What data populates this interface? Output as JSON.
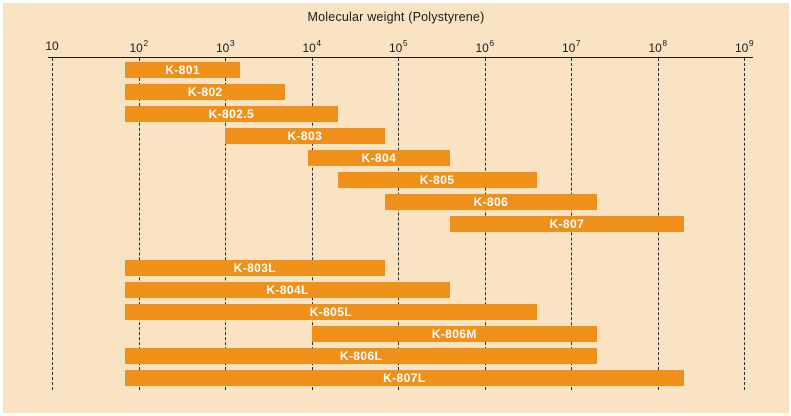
{
  "colors": {
    "panel_background": "#fae3c3",
    "bar": "#ef901b",
    "bar_label": "#ffffff",
    "axis": "#1a1a1a"
  },
  "chart_data": {
    "type": "bar",
    "orientation": "horizontal-range",
    "title": "Molecular weight (Polystyrene)",
    "xlabel": "Molecular weight (Polystyrene)",
    "ylabel": "",
    "x_axis": {
      "scale": "log10",
      "min": 10,
      "max": 1000000000,
      "tick_labels": [
        "10",
        "10^2",
        "10^3",
        "10^4",
        "10^5",
        "10^6",
        "10^7",
        "10^8",
        "10^9"
      ],
      "tick_values": [
        10,
        100,
        1000,
        10000,
        100000,
        1000000,
        10000000,
        100000000,
        1000000000
      ],
      "gridlines": "vertical-dashed"
    },
    "legend": "none",
    "series": [
      {
        "name": "K-801",
        "group": "upper",
        "range": [
          70,
          1500
        ]
      },
      {
        "name": "K-802",
        "group": "upper",
        "range": [
          70,
          5000
        ]
      },
      {
        "name": "K-802.5",
        "group": "upper",
        "range": [
          70,
          20000
        ]
      },
      {
        "name": "K-803",
        "group": "upper",
        "range": [
          1000,
          70000
        ]
      },
      {
        "name": "K-804",
        "group": "upper",
        "range": [
          9000,
          400000
        ]
      },
      {
        "name": "K-805",
        "group": "upper",
        "range": [
          20000,
          4000000
        ]
      },
      {
        "name": "K-806",
        "group": "upper",
        "range": [
          70000,
          20000000
        ]
      },
      {
        "name": "K-807",
        "group": "upper",
        "range": [
          400000,
          200000000
        ]
      },
      {
        "name": "K-803L",
        "group": "lower",
        "range": [
          70,
          70000
        ]
      },
      {
        "name": "K-804L",
        "group": "lower",
        "range": [
          70,
          400000
        ]
      },
      {
        "name": "K-805L",
        "group": "lower",
        "range": [
          70,
          4000000
        ]
      },
      {
        "name": "K-806M",
        "group": "lower",
        "range": [
          10000,
          20000000
        ]
      },
      {
        "name": "K-806L",
        "group": "lower",
        "range": [
          70,
          20000000
        ]
      },
      {
        "name": "K-807L",
        "group": "lower",
        "range": [
          70,
          200000000
        ]
      }
    ]
  }
}
